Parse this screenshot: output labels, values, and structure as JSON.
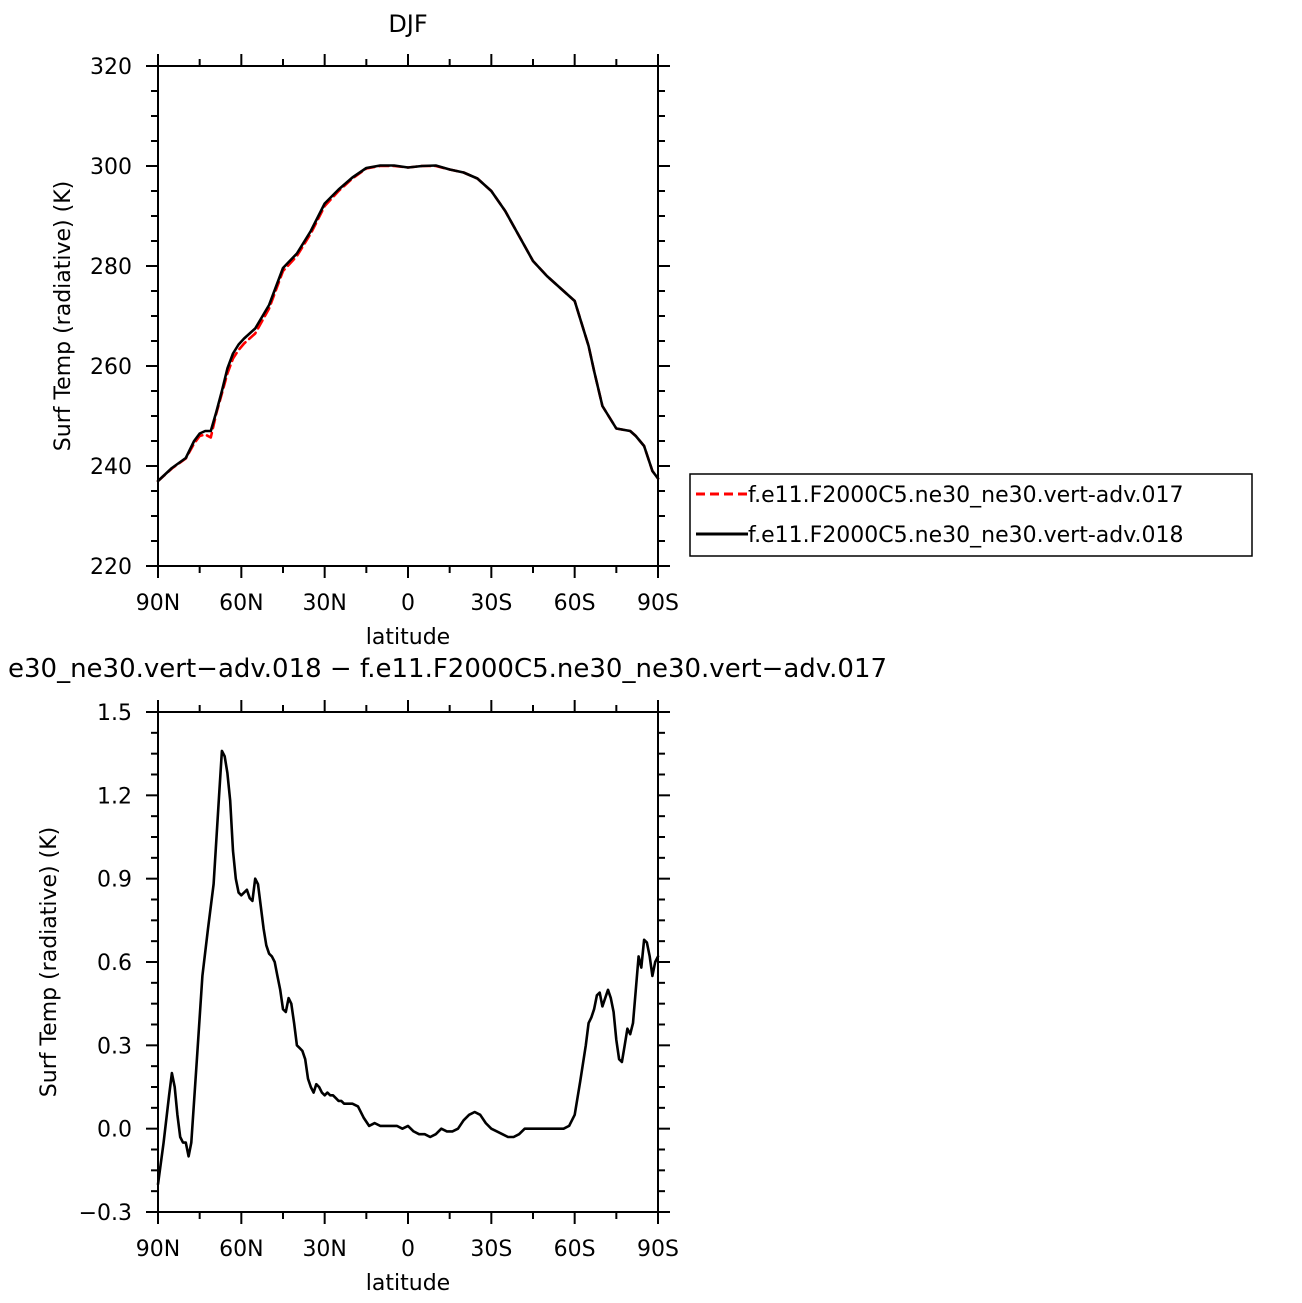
{
  "chart_data": [
    {
      "type": "line",
      "title": "DJF",
      "xlabel": "latitude",
      "ylabel": "Surf Temp (radiative) (K)",
      "xlim": [
        90,
        -90
      ],
      "ylim": [
        220,
        320
      ],
      "xticks": [
        90,
        60,
        30,
        0,
        -30,
        -60,
        -90
      ],
      "xtick_labels": [
        "90N",
        "60N",
        "30N",
        "0",
        "30S",
        "60S",
        "90S"
      ],
      "yticks": [
        220,
        240,
        260,
        280,
        300,
        320
      ],
      "ytick_labels": [
        "220",
        "240",
        "260",
        "280",
        "300",
        "320"
      ],
      "legend_position": "right",
      "series": [
        {
          "name": "f.e11.F2000C5.ne30_ne30.vert-adv.017",
          "color": "#ff0000",
          "dash": "dashed",
          "x": [
            90,
            85,
            80,
            77,
            75,
            73,
            71,
            69,
            67,
            65,
            63,
            61,
            59,
            55,
            50,
            45,
            40,
            35,
            30,
            25,
            20,
            15,
            10,
            5,
            0,
            -5,
            -10,
            -15,
            -20,
            -25,
            -30,
            -35,
            -40,
            -45,
            -50,
            -55,
            -60,
            -65,
            -67,
            -70,
            -75,
            -80,
            -82,
            -85,
            -88,
            -90
          ],
          "y": [
            237,
            239.5,
            241.5,
            244.5,
            246,
            246.3,
            245.7,
            250.5,
            254.5,
            258.5,
            261.5,
            263.2,
            264.5,
            266.5,
            271.5,
            279,
            282,
            286.5,
            292,
            295,
            297.5,
            299.5,
            300,
            300,
            299.7,
            300,
            300,
            299.3,
            298.7,
            297.5,
            295,
            291,
            286,
            281,
            278,
            275.5,
            273,
            264,
            259,
            252,
            247.5,
            247,
            246,
            244,
            239,
            237.5
          ]
        },
        {
          "name": "f.e11.F2000C5.ne30_ne30.vert-adv.018",
          "color": "#000000",
          "dash": "solid",
          "x": [
            90,
            85,
            80,
            77,
            75,
            73,
            71,
            69,
            67,
            65,
            63,
            61,
            59,
            55,
            50,
            45,
            40,
            35,
            30,
            25,
            20,
            15,
            10,
            5,
            0,
            -5,
            -10,
            -15,
            -20,
            -25,
            -30,
            -35,
            -40,
            -45,
            -50,
            -55,
            -60,
            -65,
            -67,
            -70,
            -75,
            -80,
            -82,
            -85,
            -88,
            -90
          ],
          "y": [
            237,
            239.6,
            241.6,
            245,
            246.5,
            247,
            247,
            250.8,
            255,
            259.5,
            262.5,
            264.3,
            265.5,
            267.5,
            272.2,
            279.6,
            282.5,
            287,
            292.5,
            295.3,
            297.7,
            299.6,
            300.1,
            300.1,
            299.7,
            300,
            300.1,
            299.3,
            298.7,
            297.5,
            295,
            291,
            286,
            281,
            278,
            275.5,
            273,
            264,
            259,
            252,
            247.5,
            247,
            246,
            244,
            239,
            237.5
          ]
        }
      ]
    },
    {
      "type": "line",
      "title": "e30_ne30.vert−adv.018 − f.e11.F2000C5.ne30_ne30.vert−adv.017",
      "xlabel": "latitude",
      "ylabel": "Surf Temp (radiative) (K)",
      "xlim": [
        90,
        -90
      ],
      "ylim": [
        -0.3,
        1.5
      ],
      "xticks": [
        90,
        60,
        30,
        0,
        -30,
        -60,
        -90
      ],
      "xtick_labels": [
        "90N",
        "60N",
        "30N",
        "0",
        "30S",
        "60S",
        "90S"
      ],
      "yticks": [
        -0.3,
        0.0,
        0.3,
        0.6,
        0.9,
        1.2,
        1.5
      ],
      "ytick_labels": [
        "−0.3",
        "0.0",
        "0.3",
        "0.6",
        "0.9",
        "1.2",
        "1.5"
      ],
      "series": [
        {
          "color": "#000000",
          "dash": "solid",
          "x": [
            90,
            88,
            86,
            85,
            84,
            83,
            82,
            81,
            80,
            79,
            78,
            76,
            74,
            72,
            70,
            68,
            67,
            66,
            65,
            64,
            63,
            62,
            61,
            60,
            59,
            58,
            57,
            56,
            55,
            54,
            53,
            52,
            51,
            50,
            49,
            48,
            47,
            46,
            45,
            44,
            43,
            42,
            41,
            40,
            39,
            38,
            37,
            36,
            35,
            34,
            33,
            32,
            31,
            30,
            29,
            28,
            27,
            26,
            25,
            24,
            23,
            22,
            21,
            20,
            18,
            16,
            14,
            12,
            10,
            8,
            6,
            4,
            2,
            0,
            -2,
            -4,
            -6,
            -8,
            -10,
            -12,
            -14,
            -16,
            -18,
            -20,
            -22,
            -24,
            -26,
            -28,
            -30,
            -32,
            -34,
            -36,
            -38,
            -40,
            -42,
            -44,
            -46,
            -48,
            -50,
            -52,
            -54,
            -56,
            -58,
            -60,
            -62,
            -64,
            -65,
            -66,
            -67,
            -68,
            -69,
            -70,
            -71,
            -72,
            -73,
            -74,
            -75,
            -76,
            -77,
            -78,
            -79,
            -80,
            -81,
            -82,
            -83,
            -84,
            -85,
            -86,
            -87,
            -88,
            -89,
            -90
          ],
          "x_unit": "degrees latitude (positive = N)",
          "y": [
            -0.2,
            -0.05,
            0.12,
            0.2,
            0.15,
            0.05,
            -0.03,
            -0.05,
            -0.05,
            -0.1,
            -0.05,
            0.25,
            0.55,
            0.72,
            0.88,
            1.2,
            1.36,
            1.34,
            1.28,
            1.18,
            1.0,
            0.9,
            0.85,
            0.84,
            0.85,
            0.86,
            0.83,
            0.82,
            0.9,
            0.88,
            0.8,
            0.72,
            0.66,
            0.63,
            0.62,
            0.6,
            0.55,
            0.5,
            0.43,
            0.42,
            0.47,
            0.45,
            0.38,
            0.3,
            0.29,
            0.28,
            0.25,
            0.18,
            0.15,
            0.13,
            0.16,
            0.15,
            0.13,
            0.12,
            0.13,
            0.12,
            0.12,
            0.11,
            0.1,
            0.1,
            0.09,
            0.09,
            0.09,
            0.09,
            0.08,
            0.04,
            0.01,
            0.02,
            0.01,
            0.01,
            0.01,
            0.01,
            0.0,
            0.01,
            -0.01,
            -0.02,
            -0.02,
            -0.03,
            -0.02,
            0.0,
            -0.01,
            -0.01,
            0.0,
            0.03,
            0.05,
            0.06,
            0.05,
            0.02,
            0.0,
            -0.01,
            -0.02,
            -0.03,
            -0.03,
            -0.02,
            0.0,
            0.0,
            0.0,
            0.0,
            0.0,
            0.0,
            0.0,
            0.0,
            0.01,
            0.05,
            0.17,
            0.3,
            0.38,
            0.4,
            0.43,
            0.48,
            0.49,
            0.44,
            0.47,
            0.5,
            0.47,
            0.42,
            0.32,
            0.25,
            0.24,
            0.3,
            0.36,
            0.34,
            0.38,
            0.5,
            0.62,
            0.58,
            0.68,
            0.67,
            0.62,
            0.55,
            0.6,
            0.62
          ]
        }
      ]
    }
  ]
}
